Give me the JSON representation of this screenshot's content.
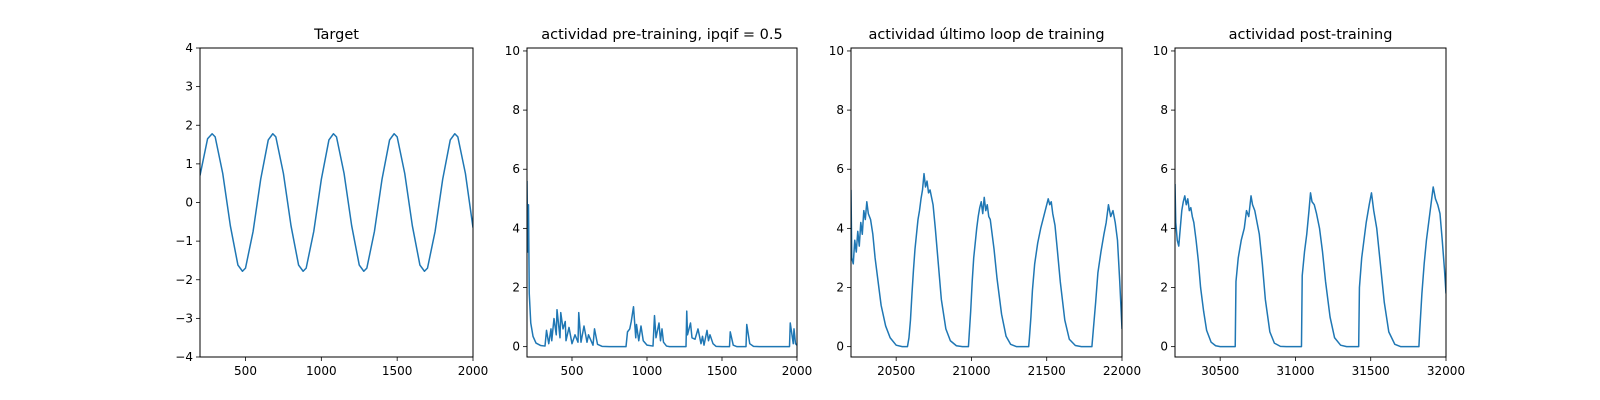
{
  "chart_data": [
    {
      "type": "line",
      "title": "Target",
      "xlim": [
        200,
        2000
      ],
      "ylim": [
        -4,
        4
      ],
      "xticks": [
        500,
        1000,
        1500,
        2000
      ],
      "yticks": [
        -4,
        -3,
        -2,
        -1,
        0,
        1,
        2,
        3,
        4
      ],
      "color": "#1f77b4",
      "series": [
        {
          "x": [
            200,
            250,
            280,
            300,
            350,
            400,
            450,
            480,
            500,
            550,
            600,
            650,
            680,
            700,
            750,
            800,
            850,
            880,
            900,
            950,
            1000,
            1050,
            1080,
            1100,
            1150,
            1200,
            1250,
            1280,
            1300,
            1350,
            1400,
            1450,
            1480,
            1500,
            1550,
            1600,
            1650,
            1680,
            1700,
            1750,
            1800,
            1850,
            1880,
            1900,
            1950,
            2000
          ],
          "y": [
            0.7,
            1.65,
            1.78,
            1.7,
            0.75,
            -0.6,
            -1.62,
            -1.78,
            -1.7,
            -0.75,
            0.6,
            1.62,
            1.78,
            1.7,
            0.75,
            -0.6,
            -1.62,
            -1.78,
            -1.7,
            -0.75,
            0.6,
            1.62,
            1.78,
            1.7,
            0.75,
            -0.6,
            -1.62,
            -1.78,
            -1.7,
            -0.75,
            0.6,
            1.62,
            1.78,
            1.7,
            0.75,
            -0.6,
            -1.62,
            -1.78,
            -1.7,
            -0.75,
            0.6,
            1.62,
            1.78,
            1.7,
            0.75,
            -0.65
          ]
        }
      ]
    },
    {
      "type": "line",
      "title": "actividad pre-training, ipqif = 0.5",
      "xlim": [
        200,
        2000
      ],
      "ylim": [
        -0.35,
        10.1
      ],
      "xticks": [
        500,
        1000,
        1500,
        2000
      ],
      "yticks": [
        0,
        2,
        4,
        6,
        8,
        10
      ],
      "color": "#1f77b4",
      "series": [
        {
          "x": [
            200,
            205,
            210,
            215,
            225,
            240,
            260,
            290,
            320,
            330,
            345,
            360,
            365,
            380,
            395,
            400,
            420,
            425,
            440,
            455,
            460,
            480,
            500,
            520,
            540,
            545,
            560,
            580,
            600,
            610,
            640,
            650,
            670,
            700,
            750,
            800,
            860,
            870,
            885,
            895,
            910,
            925,
            930,
            945,
            960,
            975,
            1000,
            1040,
            1050,
            1060,
            1080,
            1090,
            1100,
            1110,
            1130,
            1150,
            1180,
            1200,
            1260,
            1265,
            1270,
            1290,
            1300,
            1320,
            1340,
            1360,
            1370,
            1380,
            1400,
            1410,
            1420,
            1440,
            1460,
            1500,
            1550,
            1555,
            1575,
            1600,
            1660,
            1665,
            1685,
            1710,
            1750,
            1800,
            1850,
            1900,
            1950,
            1955,
            1975,
            1980,
            1990,
            2000
          ],
          "y": [
            5.6,
            3.2,
            4.8,
            1.8,
            0.8,
            0.35,
            0.12,
            0.04,
            0.02,
            0.55,
            0.1,
            0.6,
            0.2,
            0.95,
            0.4,
            1.25,
            0.3,
            1.15,
            0.6,
            0.85,
            0.2,
            0.65,
            0.1,
            0.4,
            0.15,
            1.15,
            0.15,
            0.7,
            0.15,
            0.4,
            0.05,
            0.6,
            0.08,
            0.01,
            0.0,
            0.0,
            0.0,
            0.5,
            0.6,
            0.85,
            1.35,
            0.3,
            0.75,
            0.2,
            0.7,
            0.2,
            0.05,
            0.02,
            1.05,
            0.3,
            0.8,
            0.2,
            0.6,
            0.15,
            0.02,
            0.0,
            0.0,
            0.0,
            0.0,
            1.2,
            0.4,
            0.8,
            0.3,
            0.25,
            0.6,
            0.1,
            0.35,
            0.05,
            0.55,
            0.2,
            0.4,
            0.1,
            0.01,
            0.0,
            0.0,
            0.5,
            0.05,
            0.0,
            0.0,
            0.75,
            0.1,
            0.01,
            0.0,
            0.0,
            0.0,
            0.0,
            0.0,
            0.8,
            0.1,
            0.6,
            0.1,
            0.05
          ]
        }
      ]
    },
    {
      "type": "line",
      "title": "actividad último loop de training",
      "xlim": [
        20200,
        22000
      ],
      "ylim": [
        -0.35,
        10.1
      ],
      "xticks": [
        20500,
        21000,
        21500,
        22000
      ],
      "yticks": [
        0,
        2,
        4,
        6,
        8,
        10
      ],
      "color": "#1f77b4",
      "series": [
        {
          "x": [
            20200,
            20205,
            20215,
            20225,
            20235,
            20245,
            20255,
            20265,
            20275,
            20285,
            20295,
            20305,
            20315,
            20330,
            20345,
            20360,
            20380,
            20400,
            20430,
            20460,
            20500,
            20540,
            20575,
            20585,
            20595,
            20605,
            20615,
            20625,
            20635,
            20645,
            20655,
            20665,
            20675,
            20685,
            20695,
            20705,
            20715,
            20725,
            20745,
            20760,
            20780,
            20800,
            20830,
            20860,
            20900,
            20940,
            20980,
            20985,
            20995,
            21005,
            21015,
            21025,
            21035,
            21045,
            21055,
            21065,
            21075,
            21085,
            21095,
            21105,
            21115,
            21125,
            21150,
            21170,
            21200,
            21230,
            21260,
            21300,
            21340,
            21380,
            21385,
            21395,
            21405,
            21420,
            21440,
            21460,
            21480,
            21495,
            21510,
            21520,
            21530,
            21540,
            21555,
            21570,
            21590,
            21620,
            21650,
            21690,
            21730,
            21770,
            21800,
            21810,
            21825,
            21840,
            21860,
            21880,
            21895,
            21910,
            21925,
            21940,
            21955,
            21970,
            21985,
            22000
          ],
          "y": [
            5.3,
            3.0,
            2.8,
            3.6,
            3.2,
            3.9,
            3.4,
            4.2,
            3.8,
            4.6,
            4.3,
            4.9,
            4.5,
            4.3,
            3.8,
            3.0,
            2.2,
            1.4,
            0.7,
            0.3,
            0.05,
            0.0,
            0.0,
            0.3,
            0.9,
            1.8,
            2.6,
            3.3,
            3.8,
            4.3,
            4.6,
            5.0,
            5.3,
            5.85,
            5.4,
            5.6,
            5.2,
            5.3,
            4.8,
            4.0,
            2.8,
            1.6,
            0.6,
            0.2,
            0.03,
            0.0,
            0.0,
            0.4,
            1.2,
            2.2,
            3.0,
            3.5,
            4.0,
            4.4,
            4.7,
            4.9,
            4.5,
            5.05,
            4.6,
            4.8,
            4.4,
            4.3,
            3.3,
            2.3,
            1.1,
            0.35,
            0.08,
            0.0,
            0.0,
            0.0,
            0.3,
            1.0,
            1.9,
            2.8,
            3.5,
            4.0,
            4.4,
            4.7,
            5.0,
            4.8,
            4.9,
            4.5,
            4.1,
            3.3,
            2.2,
            0.9,
            0.25,
            0.04,
            0.0,
            0.0,
            0.0,
            0.6,
            1.5,
            2.5,
            3.2,
            3.8,
            4.2,
            4.8,
            4.4,
            4.6,
            4.2,
            3.6,
            2.2,
            0.6
          ]
        }
      ]
    },
    {
      "type": "line",
      "title": "actividad post-training",
      "xlim": [
        30200,
        32000
      ],
      "ylim": [
        -0.35,
        10.1
      ],
      "xticks": [
        30500,
        31000,
        31500,
        32000
      ],
      "yticks": [
        0,
        2,
        4,
        6,
        8,
        10
      ],
      "color": "#1f77b4",
      "series": [
        {
          "x": [
            30200,
            30205,
            30215,
            30225,
            30235,
            30245,
            30255,
            30265,
            30275,
            30285,
            30295,
            30305,
            30315,
            30325,
            30340,
            30355,
            30370,
            30390,
            30410,
            30440,
            30470,
            30500,
            30540,
            30580,
            30600,
            30605,
            30620,
            30640,
            30660,
            30675,
            30690,
            30705,
            30715,
            30730,
            30745,
            30760,
            30780,
            30800,
            30830,
            30860,
            30900,
            30940,
            30980,
            31040,
            31045,
            31060,
            31075,
            31090,
            31100,
            31110,
            31125,
            31140,
            31160,
            31180,
            31200,
            31230,
            31260,
            31300,
            31340,
            31380,
            31420,
            31425,
            31440,
            31455,
            31470,
            31490,
            31505,
            31520,
            31540,
            31560,
            31590,
            31620,
            31660,
            31700,
            31740,
            31780,
            31820,
            31825,
            31840,
            31855,
            31870,
            31885,
            31900,
            31915,
            31930,
            31945,
            31960,
            31975,
            31990,
            32000
          ],
          "y": [
            5.5,
            4.2,
            3.6,
            3.4,
            4.0,
            4.6,
            4.9,
            5.1,
            4.8,
            5.0,
            4.6,
            4.7,
            4.4,
            4.2,
            3.6,
            2.9,
            2.0,
            1.2,
            0.55,
            0.15,
            0.03,
            0.0,
            0.0,
            0.0,
            0.0,
            2.2,
            3.0,
            3.6,
            4.0,
            4.6,
            4.4,
            5.1,
            4.8,
            4.6,
            4.2,
            3.8,
            2.8,
            1.6,
            0.5,
            0.12,
            0.01,
            0.0,
            0.0,
            0.0,
            2.4,
            3.2,
            3.8,
            4.6,
            5.2,
            4.9,
            4.8,
            4.5,
            4.0,
            3.2,
            2.2,
            1.0,
            0.3,
            0.05,
            0.0,
            0.0,
            0.0,
            2.0,
            3.0,
            3.6,
            4.2,
            4.8,
            5.2,
            4.6,
            4.0,
            3.0,
            1.5,
            0.5,
            0.08,
            0.0,
            0.0,
            0.0,
            0.0,
            0.5,
            1.8,
            2.8,
            3.6,
            4.2,
            4.8,
            5.4,
            5.0,
            4.8,
            4.5,
            3.6,
            2.6,
            1.8
          ]
        }
      ]
    }
  ]
}
